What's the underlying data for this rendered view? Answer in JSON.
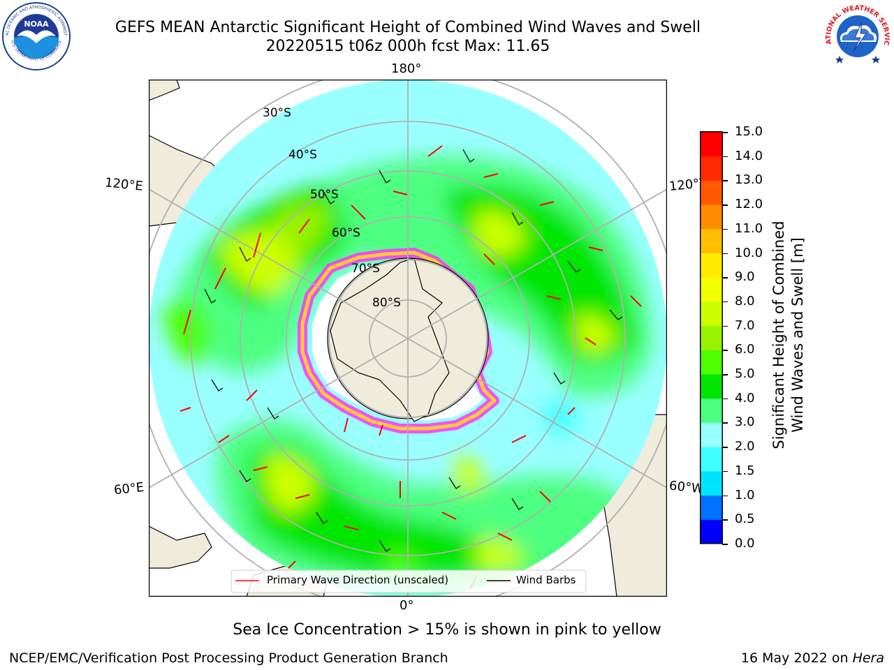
{
  "header": {
    "title_line1": "GEFS MEAN Antarctic Significant Height of Combined Wind Waves and Swell",
    "title_line2": "20220515 t06z 000h fcst   Max: 11.65"
  },
  "logos": {
    "noaa_text": "NOAA",
    "noaa_ring_top": "NATIONAL OCEANIC AND ATMOSPHERIC ADMINISTRATION",
    "noaa_ring_bottom": "U.S. DEPARTMENT OF COMMERCE",
    "nws_ring_top": "NATIONAL WEATHER SERVICE"
  },
  "map": {
    "longitude_labels": [
      "180°",
      "120°E",
      "120°W",
      "60°E",
      "60°W",
      "0°"
    ],
    "latitude_labels": [
      "30°S",
      "40°S",
      "50°S",
      "60°S",
      "70°S",
      "80°S"
    ],
    "legend": {
      "wave_direction": "Primary Wave Direction (unscaled)",
      "wind_barbs": "Wind Barbs"
    }
  },
  "colorbar": {
    "label_line1": "Significant Height of Combined",
    "label_line2": "Wind Waves and Swell [m]",
    "ticks": [
      "15.0",
      "14.0",
      "13.0",
      "12.0",
      "11.0",
      "10.0",
      "9.0",
      "8.0",
      "7.0",
      "6.0",
      "5.0",
      "4.0",
      "3.0",
      "2.0",
      "1.5",
      "1.0",
      "0.5",
      "0.0"
    ],
    "colors": [
      "#0000ff",
      "#0073ff",
      "#00e5ff",
      "#40ffff",
      "#99ffff",
      "#4dff80",
      "#00e600",
      "#4dff00",
      "#99f200",
      "#ccff00",
      "#f2ff00",
      "#ffea00",
      "#ffbf00",
      "#ff8c00",
      "#ff5a00",
      "#ff2a00",
      "#ff0000"
    ]
  },
  "notes": {
    "sea_ice": "Sea Ice Concentration > 15% is shown in pink to yellow"
  },
  "footer": {
    "left": "NCEP/EMC/Verification Post Processing Product Generation Branch",
    "date": "16 May 2022 on ",
    "machine": "Hera"
  }
}
